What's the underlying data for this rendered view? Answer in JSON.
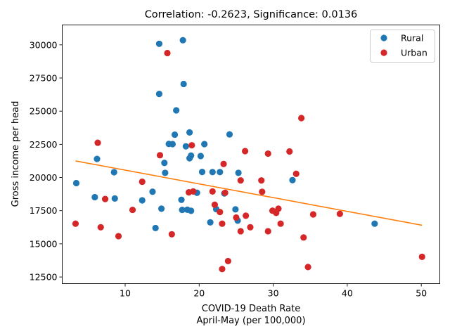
{
  "chart_data": {
    "type": "scatter",
    "title": "Correlation: -0.2623, Significance: 0.0136",
    "xlabel_line1": "COVID-19 Death Rate",
    "xlabel_line2": "April-May (per 100,000)",
    "ylabel": "Gross income per head",
    "xlim": [
      1.5,
      52.5
    ],
    "ylim": [
      12000,
      31500
    ],
    "xticks": [
      10,
      20,
      30,
      40,
      50
    ],
    "yticks": [
      12500,
      15000,
      17500,
      20000,
      22500,
      25000,
      27500,
      30000
    ],
    "xtick_labels": [
      "10",
      "20",
      "30",
      "40",
      "50"
    ],
    "ytick_labels": [
      "12500",
      "15000",
      "17500",
      "20000",
      "22500",
      "25000",
      "27500",
      "30000"
    ],
    "legend_position": "upper right",
    "trend_line": {
      "color": "#ff7f0e",
      "x": [
        3.3,
        50.1
      ],
      "y": [
        21250,
        16400
      ]
    },
    "series": [
      {
        "name": "Rural",
        "color": "#1f77b4",
        "points": [
          [
            3.4,
            19580
          ],
          [
            5.9,
            18520
          ],
          [
            6.2,
            21400
          ],
          [
            8.5,
            20400
          ],
          [
            8.6,
            18420
          ],
          [
            12.3,
            18280
          ],
          [
            13.7,
            18930
          ],
          [
            14.1,
            16190
          ],
          [
            14.6,
            30080
          ],
          [
            14.6,
            26300
          ],
          [
            14.9,
            17650
          ],
          [
            15.3,
            21100
          ],
          [
            15.4,
            20350
          ],
          [
            15.9,
            22530
          ],
          [
            16.4,
            22520
          ],
          [
            16.7,
            23230
          ],
          [
            16.9,
            25060
          ],
          [
            17.6,
            18320
          ],
          [
            17.7,
            17560
          ],
          [
            17.8,
            30350
          ],
          [
            17.9,
            27050
          ],
          [
            18.2,
            22350
          ],
          [
            18.4,
            17570
          ],
          [
            18.7,
            23400
          ],
          [
            18.7,
            21450
          ],
          [
            18.9,
            21650
          ],
          [
            18.9,
            17490
          ],
          [
            19.7,
            18850
          ],
          [
            20.2,
            21620
          ],
          [
            20.4,
            20420
          ],
          [
            20.7,
            22520
          ],
          [
            21.5,
            16620
          ],
          [
            21.8,
            20410
          ],
          [
            22.3,
            17620
          ],
          [
            22.8,
            20410
          ],
          [
            23.4,
            18800
          ],
          [
            24.1,
            23250
          ],
          [
            24.9,
            17600
          ],
          [
            25.2,
            16750
          ],
          [
            25.3,
            20350
          ],
          [
            32.6,
            19800
          ],
          [
            43.7,
            16520
          ]
        ]
      },
      {
        "name": "Urban",
        "color": "#d62728",
        "points": [
          [
            3.3,
            16520
          ],
          [
            6.3,
            22620
          ],
          [
            6.7,
            16250
          ],
          [
            7.3,
            18380
          ],
          [
            9.1,
            15580
          ],
          [
            11.0,
            17560
          ],
          [
            12.3,
            19680
          ],
          [
            14.7,
            21680
          ],
          [
            15.7,
            29380
          ],
          [
            16.3,
            15720
          ],
          [
            18.6,
            18880
          ],
          [
            19.0,
            22430
          ],
          [
            19.2,
            18950
          ],
          [
            21.8,
            18950
          ],
          [
            22.1,
            17950
          ],
          [
            22.8,
            17400
          ],
          [
            23.1,
            16520
          ],
          [
            23.1,
            13100
          ],
          [
            23.3,
            21020
          ],
          [
            23.5,
            18850
          ],
          [
            23.9,
            13700
          ],
          [
            25.0,
            16980
          ],
          [
            25.6,
            15950
          ],
          [
            25.6,
            19780
          ],
          [
            26.2,
            21990
          ],
          [
            26.3,
            17120
          ],
          [
            26.9,
            16250
          ],
          [
            28.4,
            19780
          ],
          [
            28.5,
            18920
          ],
          [
            29.3,
            15950
          ],
          [
            29.3,
            21800
          ],
          [
            29.9,
            17500
          ],
          [
            30.4,
            17330
          ],
          [
            30.7,
            17650
          ],
          [
            31.0,
            16520
          ],
          [
            32.2,
            21960
          ],
          [
            33.1,
            20280
          ],
          [
            33.8,
            24480
          ],
          [
            34.1,
            15480
          ],
          [
            34.7,
            13250
          ],
          [
            35.4,
            17220
          ],
          [
            39.0,
            17260
          ],
          [
            50.1,
            14020
          ]
        ]
      }
    ]
  }
}
